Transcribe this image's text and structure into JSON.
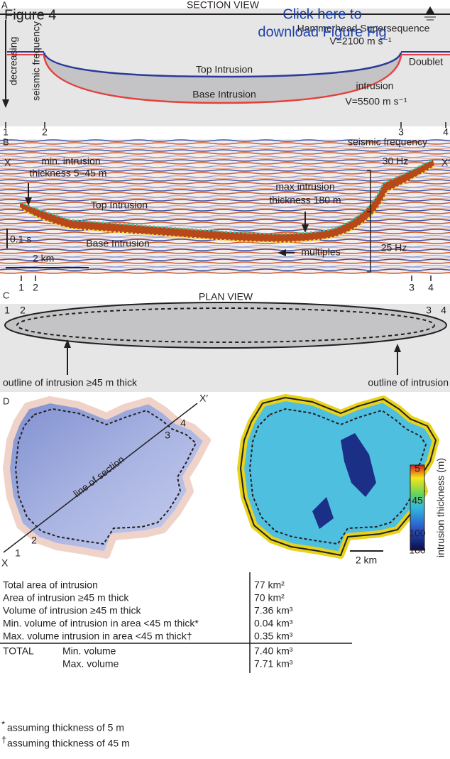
{
  "figure_label": "Figure 4",
  "download_link": [
    "Click here to",
    "download Figure Fig"
  ],
  "panel_a": {
    "label": "A",
    "title": "SECTION VIEW",
    "host_rock": "Hammerhead Supersequence",
    "host_velocity": "V=2100 m s⁻¹",
    "unit_right": "Doublet",
    "axis_note": [
      "decreasing",
      "seismic frequency"
    ],
    "top": "Top Intrusion",
    "base": "Base Intrusion",
    "intrusion": "intrusion",
    "intrusion_velocity": "V=5500 m s⁻¹",
    "points": [
      "1",
      "2",
      "3",
      "4"
    ]
  },
  "panel_b": {
    "label": "B",
    "x_start": "X",
    "x_end": "X′",
    "frequency_title": "seismic frequency",
    "freq_high": "30 Hz",
    "freq_low": "25 Hz",
    "min_note": [
      "min. intrusion",
      "thickness 5–45 m"
    ],
    "max_note": [
      "max intrusion",
      "thickness 180 m"
    ],
    "top": "Top Intrusion",
    "base": "Base Intrusion",
    "multiples": "multiples",
    "time_scale": "0.1 s",
    "distance_scale": "2 km",
    "points": [
      "1",
      "2",
      "3",
      "4"
    ]
  },
  "panel_c": {
    "label": "C",
    "title": "PLAN VIEW",
    "points": [
      "1",
      "2",
      "3",
      "4"
    ],
    "inner_outline": "outline of intrusion ≥45 m thick",
    "outer_outline": "outline of intrusion"
  },
  "panel_d": {
    "label": "D",
    "x_end": "X′",
    "x_start": "X",
    "section_line": "line of section",
    "points": [
      "1",
      "2",
      "3",
      "4"
    ],
    "colorbar_ticks": [
      "5",
      "45",
      "100",
      "180"
    ],
    "colorbar_title": "intrusion thickness (m)",
    "distance_scale": "2 km"
  },
  "table": {
    "rows": [
      {
        "label": "Total area of intrusion",
        "value": "77 km²"
      },
      {
        "label": "Area of intrusion ≥45 m thick",
        "value": "70 km²"
      },
      {
        "label": "Volume of intrusion ≥45 m thick",
        "value": "7.36 km³"
      },
      {
        "label": "Min. volume of intrusion in area <45 m thick*",
        "value": "0.04 km³"
      },
      {
        "label": "Max. volume intrusion in area <45 m thick†",
        "value": "0.35 km³"
      }
    ],
    "total": {
      "label": "TOTAL",
      "rows": [
        {
          "label": "Min. volume",
          "value": "7.40 km³"
        },
        {
          "label": "Max. volume",
          "value": "7.71 km³"
        }
      ]
    }
  },
  "footnotes": [
    {
      "marker": "*",
      "text": "assuming thickness of 5 m"
    },
    {
      "marker": "†",
      "text": "assuming thickness of 45 m"
    }
  ]
}
